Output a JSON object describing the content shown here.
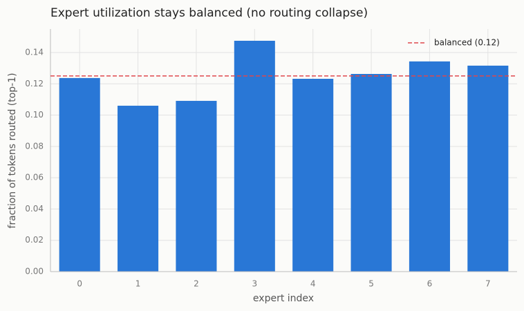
{
  "chart_data": {
    "type": "bar",
    "title": "Expert utilization stays balanced (no routing collapse)",
    "x_label": "expert index",
    "y_label": "fraction of tokens routed (top-1)",
    "categories": [
      "0",
      "1",
      "2",
      "3",
      "4",
      "5",
      "6",
      "7"
    ],
    "values": [
      0.1237,
      0.106,
      0.1091,
      0.1475,
      0.1232,
      0.1263,
      0.1343,
      0.1316
    ],
    "color": "#2977d6",
    "ylim": [
      0,
      0.155
    ],
    "yticks": [
      {
        "value": 0,
        "label": "0.00"
      },
      0.02,
      0.04,
      0.06,
      0.08,
      {
        "value": 0.1,
        "label": "0.10"
      },
      0.12,
      0.14
    ],
    "grid": true,
    "reference_line": {
      "name": "balanced (0.12)",
      "value": 0.125,
      "color": "#e0474c"
    },
    "legend": "upper right"
  }
}
